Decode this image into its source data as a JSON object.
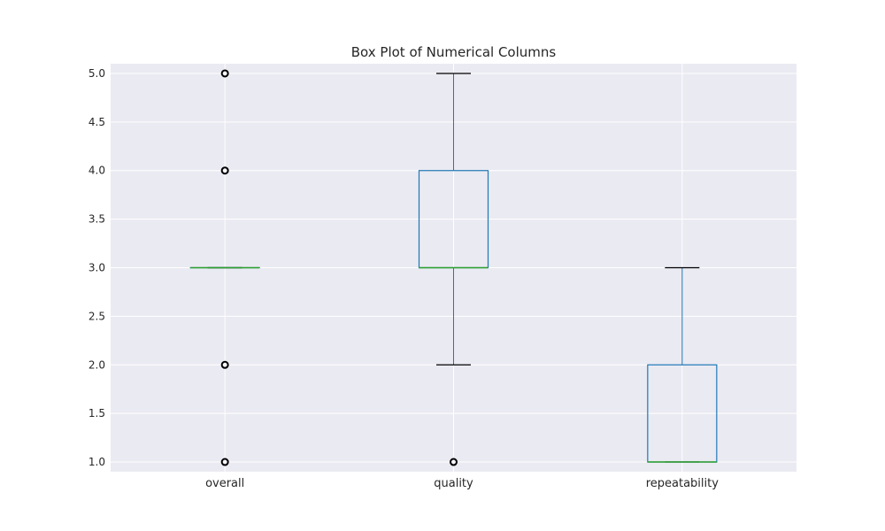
{
  "chart_data": {
    "type": "box",
    "title": "Box Plot of Numerical Columns",
    "xlabel": "",
    "ylabel": "",
    "ylim": [
      0.9,
      5.1
    ],
    "yticks": [
      "1.0",
      "1.5",
      "2.0",
      "2.5",
      "3.0",
      "3.5",
      "4.0",
      "4.5",
      "5.0"
    ],
    "grid": true,
    "categories": [
      "overall",
      "quality",
      "repeatability"
    ],
    "boxes": [
      {
        "name": "overall",
        "whisker_low": 3.0,
        "q1": 3.0,
        "median": 3.0,
        "q3": 3.0,
        "whisker_high": 3.0,
        "outliers": [
          1.0,
          2.0,
          4.0,
          5.0
        ]
      },
      {
        "name": "quality",
        "whisker_low": 2.0,
        "q1": 3.0,
        "median": 3.0,
        "q3": 4.0,
        "whisker_high": 5.0,
        "outliers": [
          1.0
        ]
      },
      {
        "name": "repeatability",
        "whisker_low": 1.0,
        "q1": 1.0,
        "median": 1.0,
        "q3": 2.0,
        "whisker_high": 3.0,
        "outliers": []
      }
    ],
    "colors": {
      "background": "#eaeaf2",
      "grid": "#ffffff",
      "box": "#1f77b4",
      "median": "#2ca02c",
      "cap": "#000000",
      "outlier": "#000000"
    }
  }
}
